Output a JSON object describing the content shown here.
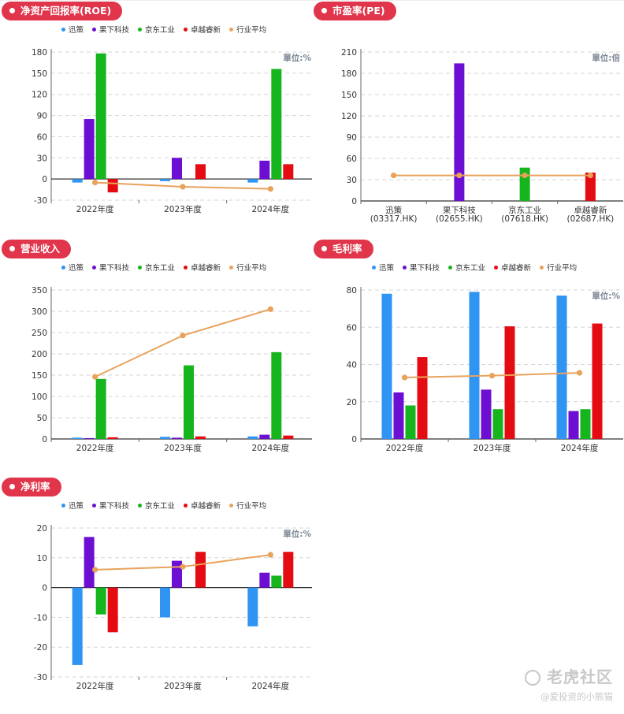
{
  "colors": {
    "迅策": "#2f94f2",
    "果下科技": "#6c0fd2",
    "京东工业": "#16b51d",
    "卓越睿新": "#e50b12",
    "行业平均": "#e8a25c",
    "pill": "#e0354a"
  },
  "legend": [
    "迅策",
    "果下科技",
    "京东工业",
    "卓越睿新",
    "行业平均"
  ],
  "watermark": {
    "brand": "老虎社区",
    "user": "@爱投资的小熊猫"
  },
  "chart_data": [
    {
      "id": "roe",
      "type": "bar",
      "title": "净资产回报率(ROE)",
      "unit": "單位:%",
      "categories": [
        "2022年度",
        "2023年度",
        "2024年度"
      ],
      "ylim": [
        -30,
        180
      ],
      "yticks": [
        -30,
        0,
        30,
        60,
        90,
        120,
        150,
        180
      ],
      "series": [
        {
          "name": "迅策",
          "values": [
            -5,
            -3,
            -5
          ]
        },
        {
          "name": "果下科技",
          "values": [
            85,
            30,
            26
          ]
        },
        {
          "name": "京东工业",
          "values": [
            178,
            null,
            156
          ]
        },
        {
          "name": "卓越睿新",
          "values": [
            -19,
            21,
            21
          ]
        }
      ],
      "average": [
        -5,
        -11,
        -14
      ]
    },
    {
      "id": "pe",
      "type": "bar",
      "title": "市盈率(PE)",
      "unit": "單位:倍",
      "categories": [
        "迅策\n(03317.HK)",
        "果下科技\n(02655.HK)",
        "京东工业\n(07618.HK)",
        "卓越睿新\n(02687.HK)"
      ],
      "ylim": [
        0,
        210
      ],
      "yticks": [
        0,
        30,
        60,
        90,
        120,
        150,
        180,
        210
      ],
      "per_category": true,
      "values": [
        null,
        194,
        47,
        40
      ],
      "average": [
        36,
        36,
        36,
        36
      ]
    },
    {
      "id": "revenue",
      "type": "bar",
      "title": "营业收入",
      "unit": "",
      "categories": [
        "2022年度",
        "2023年度",
        "2024年度"
      ],
      "ylim": [
        0,
        350
      ],
      "yticks": [
        0,
        50,
        100,
        150,
        200,
        250,
        300,
        350
      ],
      "series": [
        {
          "name": "迅策",
          "values": [
            3,
            5,
            6
          ]
        },
        {
          "name": "果下科技",
          "values": [
            2,
            3,
            10
          ]
        },
        {
          "name": "京东工业",
          "values": [
            141,
            173,
            204
          ]
        },
        {
          "name": "卓越睿新",
          "values": [
            4,
            6,
            8
          ]
        }
      ],
      "average": [
        146,
        243,
        305
      ]
    },
    {
      "id": "gross",
      "type": "bar",
      "title": "毛利率",
      "unit": "單位:%",
      "categories": [
        "2022年度",
        "2023年度",
        "2024年度"
      ],
      "ylim": [
        0,
        80
      ],
      "yticks": [
        0,
        20,
        40,
        60,
        80
      ],
      "series": [
        {
          "name": "迅策",
          "values": [
            78,
            79,
            77
          ]
        },
        {
          "name": "果下科技",
          "values": [
            25,
            26.5,
            15
          ]
        },
        {
          "name": "京东工业",
          "values": [
            18,
            16,
            16
          ]
        },
        {
          "name": "卓越睿新",
          "values": [
            44,
            60.5,
            62
          ]
        }
      ],
      "average": [
        33,
        34,
        35.5
      ]
    },
    {
      "id": "net",
      "type": "bar",
      "title": "净利率",
      "unit": "單位:%",
      "categories": [
        "2022年度",
        "2023年度",
        "2024年度"
      ],
      "ylim": [
        -30,
        20
      ],
      "yticks": [
        -30,
        -20,
        -10,
        0,
        10,
        20
      ],
      "series": [
        {
          "name": "迅策",
          "values": [
            -26,
            -10,
            -13
          ]
        },
        {
          "name": "果下科技",
          "values": [
            17,
            9,
            5
          ]
        },
        {
          "name": "京东工业",
          "values": [
            -9,
            null,
            4
          ]
        },
        {
          "name": "卓越睿新",
          "values": [
            -15,
            12,
            12
          ]
        }
      ],
      "average": [
        6,
        7,
        11
      ]
    }
  ]
}
